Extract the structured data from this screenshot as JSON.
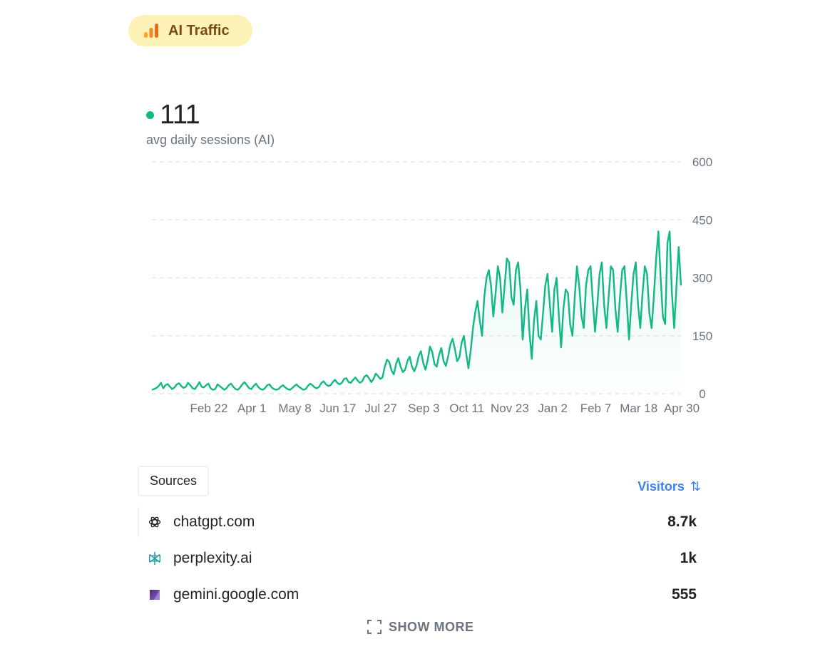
{
  "badge": {
    "label": "AI Traffic",
    "icon": "bar-chart-icon",
    "color": "#fdf2b8"
  },
  "metric": {
    "value": "111",
    "label": "avg daily sessions (AI)",
    "accent": "#12b886"
  },
  "chart_data": {
    "type": "area",
    "title": "",
    "xlabel": "",
    "ylabel": "",
    "ylim": [
      0,
      600
    ],
    "y_ticks": [
      "600",
      "450",
      "300",
      "150",
      "0"
    ],
    "x_ticks": [
      "Feb 22",
      "Apr 1",
      "May 8",
      "Jun 17",
      "Jul 27",
      "Sep 3",
      "Oct 11",
      "Nov 23",
      "Jan 2",
      "Feb 7",
      "Mar 18",
      "Apr 30"
    ],
    "grid": true,
    "color": "#12b886",
    "series": [
      {
        "values": [
          10,
          12,
          15,
          20,
          28,
          14,
          22,
          25,
          18,
          12,
          16,
          24,
          27,
          20,
          15,
          18,
          28,
          22,
          14,
          12,
          20,
          30,
          18,
          16,
          22,
          26,
          14,
          10,
          12,
          24,
          20,
          15,
          10,
          14,
          22,
          26,
          18,
          12,
          10,
          16,
          24,
          30,
          22,
          14,
          12,
          20,
          26,
          18,
          12,
          10,
          14,
          22,
          24,
          16,
          12,
          10,
          12,
          18,
          22,
          16,
          12,
          10,
          14,
          20,
          24,
          18,
          14,
          10,
          12,
          20,
          26,
          22,
          16,
          14,
          18,
          28,
          32,
          24,
          20,
          22,
          30,
          36,
          28,
          24,
          28,
          38,
          40,
          30,
          28,
          36,
          42,
          34,
          28,
          32,
          44,
          48,
          40,
          30,
          38,
          52,
          46,
          38,
          42,
          70,
          88,
          82,
          60,
          50,
          78,
          92,
          70,
          56,
          62,
          84,
          96,
          70,
          58,
          72,
          98,
          110,
          80,
          62,
          88,
          122,
          108,
          76,
          70,
          100,
          118,
          84,
          72,
          96,
          128,
          142,
          116,
          84,
          94,
          132,
          150,
          104,
          66,
          112,
          170,
          210,
          240,
          190,
          150,
          250,
          300,
          320,
          280,
          200,
          260,
          330,
          300,
          210,
          280,
          350,
          340,
          250,
          230,
          320,
          340,
          270,
          140,
          220,
          270,
          160,
          90,
          190,
          240,
          150,
          140,
          210,
          280,
          310,
          230,
          160,
          270,
          300,
          200,
          120,
          220,
          270,
          260,
          180,
          150,
          250,
          330,
          280,
          200,
          170,
          280,
          320,
          330,
          240,
          160,
          230,
          310,
          340,
          230,
          170,
          250,
          330,
          320,
          220,
          160,
          250,
          320,
          330,
          240,
          140,
          230,
          310,
          340,
          230,
          170,
          260,
          330,
          310,
          210,
          170,
          250,
          350,
          420,
          300,
          200,
          180,
          390,
          420,
          260,
          170,
          280,
          380,
          280
        ]
      }
    ]
  },
  "sources": {
    "tab_label": "Sources",
    "sort_label": "Visitors",
    "sort_icon": "sort-arrows-icon",
    "rows": [
      {
        "domain": "chatgpt.com",
        "count": "8.7k",
        "icon": "openai-icon"
      },
      {
        "domain": "perplexity.ai",
        "count": "1k",
        "icon": "perplexity-icon"
      },
      {
        "domain": "gemini.google.com",
        "count": "555",
        "icon": "gemini-icon"
      }
    ],
    "show_more_label": "SHOW MORE",
    "show_more_icon": "expand-icon"
  }
}
